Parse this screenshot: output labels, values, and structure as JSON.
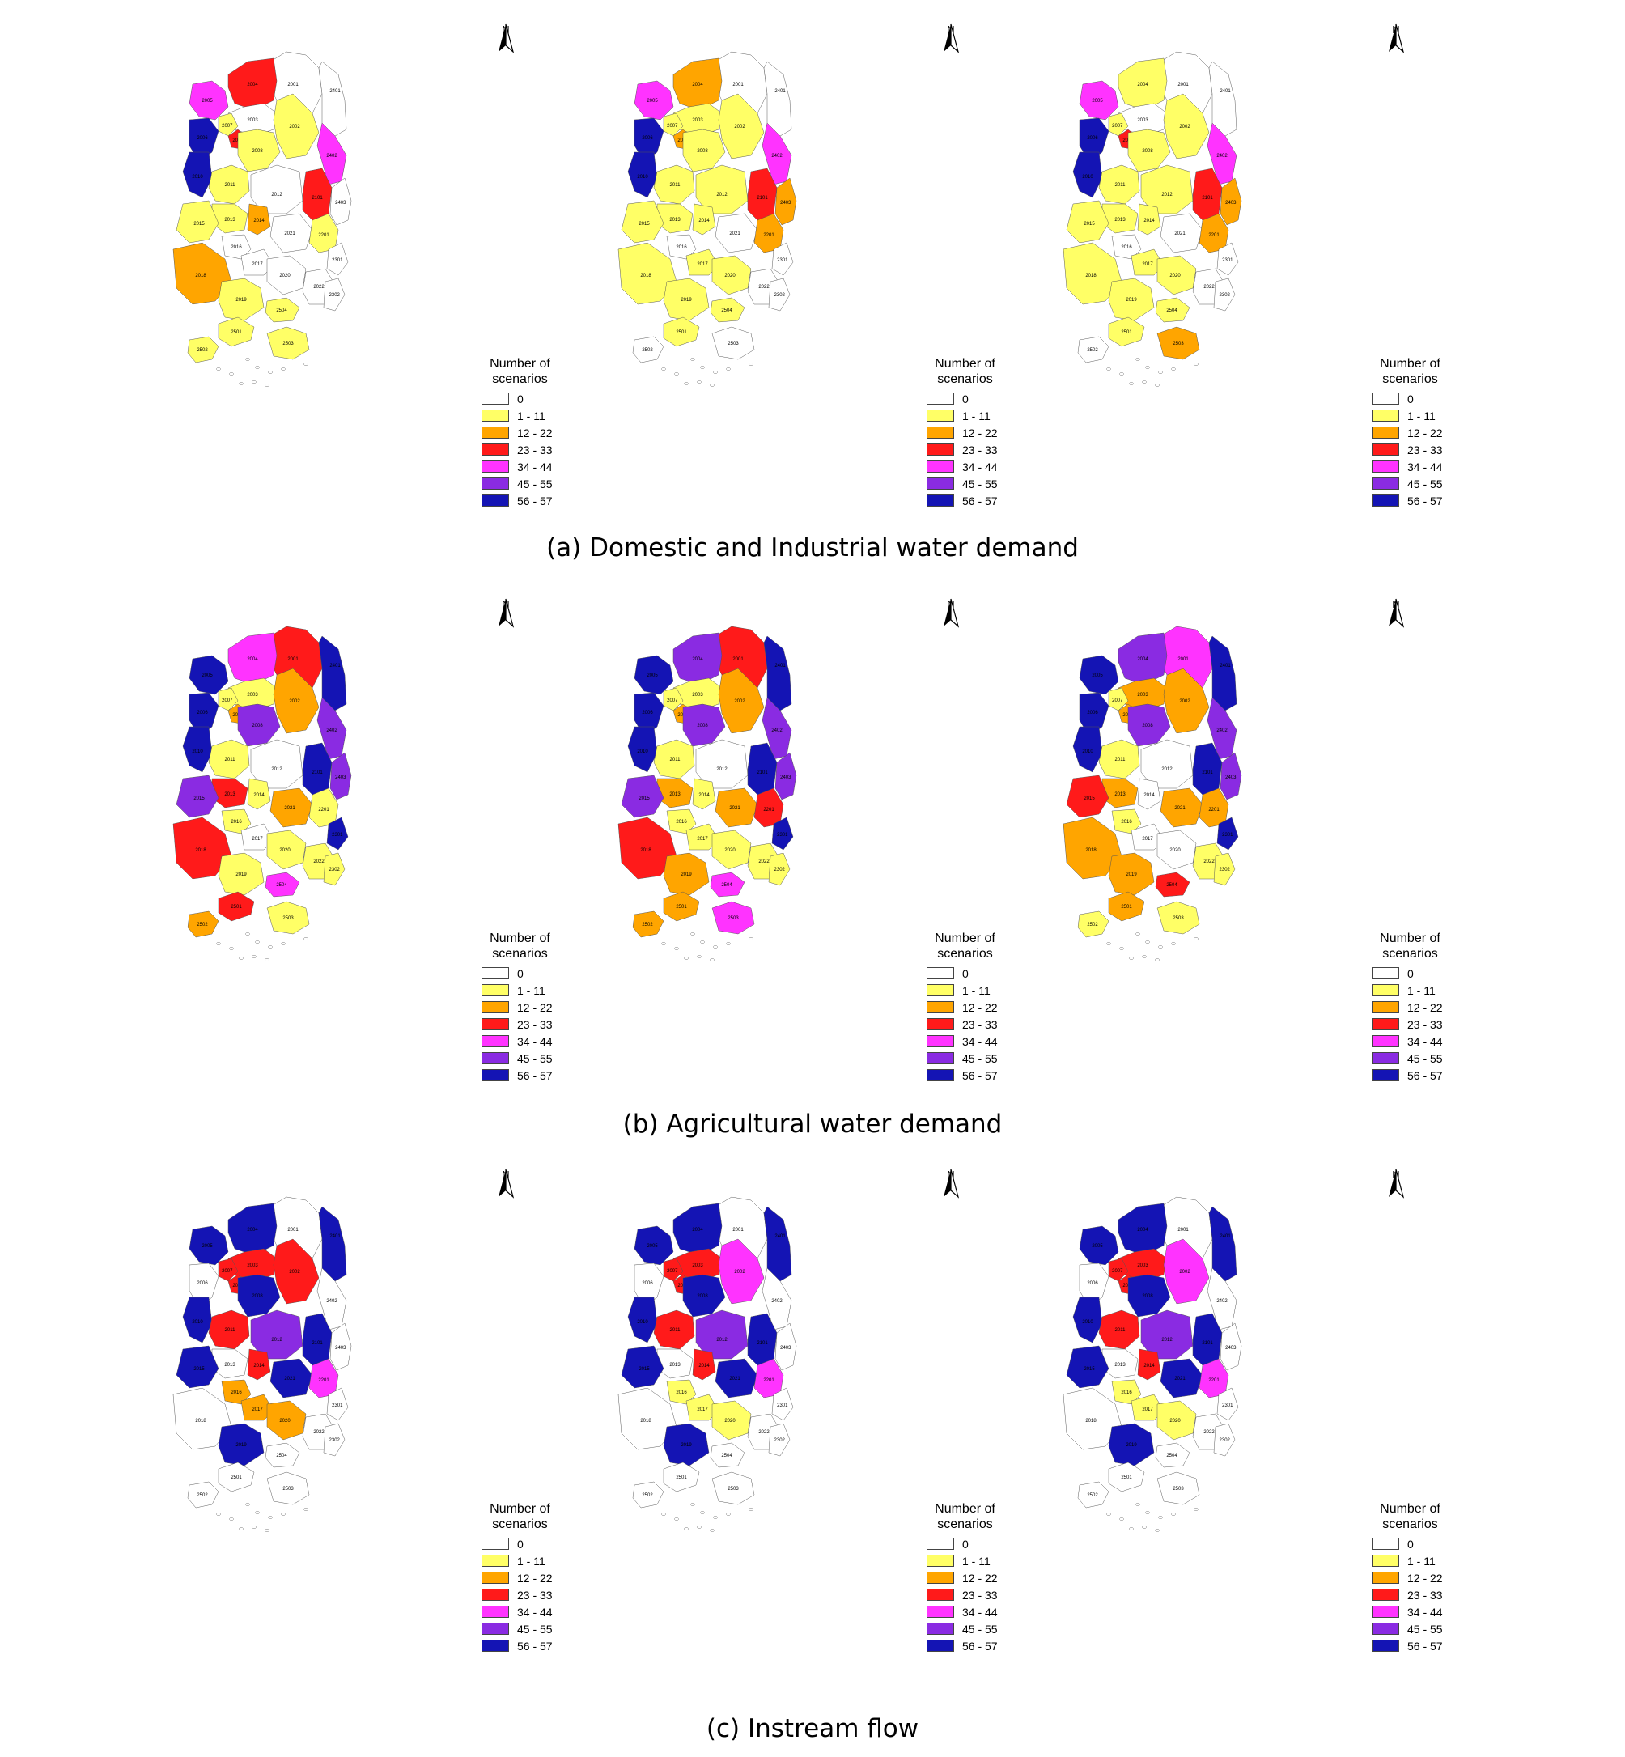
{
  "legend": {
    "title": "Number of scenarios",
    "classes": [
      {
        "label": "0",
        "color": "#ffffff"
      },
      {
        "label": "1 - 11",
        "color": "#ffff66"
      },
      {
        "label": "12 - 22",
        "color": "#ffa500"
      },
      {
        "label": "23 - 33",
        "color": "#ff1a1a"
      },
      {
        "label": "34 - 44",
        "color": "#ff33ff"
      },
      {
        "label": "45 - 55",
        "color": "#8a2be2"
      },
      {
        "label": "56 - 57",
        "color": "#1414b4"
      }
    ]
  },
  "north_label": "N",
  "rows": [
    {
      "caption": "(a) Domestic and Industrial water demand",
      "maps": [
        {
          "2001": 0,
          "2401": 0,
          "2004": 3,
          "2005": 4,
          "2003": 0,
          "2002": 1,
          "2007": 1,
          "2009": 3,
          "2006": 6,
          "2008": 1,
          "2402": 4,
          "2010": 6,
          "2011": 1,
          "2012": 0,
          "2101": 3,
          "2403": 0,
          "2013": 1,
          "2014": 2,
          "2015": 1,
          "2201": 1,
          "2021": 0,
          "2016": 0,
          "2017": 0,
          "2018": 2,
          "2301": 0,
          "2020": 0,
          "2022": 0,
          "2019": 1,
          "2302": 0,
          "2504": 1,
          "2501": 1,
          "2502": 1,
          "2503": 1
        },
        {
          "2001": 0,
          "2401": 0,
          "2004": 2,
          "2005": 4,
          "2003": 1,
          "2002": 1,
          "2007": 1,
          "2009": 2,
          "2006": 6,
          "2008": 1,
          "2402": 4,
          "2010": 6,
          "2011": 1,
          "2012": 1,
          "2101": 3,
          "2403": 2,
          "2013": 1,
          "2014": 1,
          "2015": 1,
          "2201": 2,
          "2021": 0,
          "2016": 0,
          "2017": 1,
          "2018": 1,
          "2301": 0,
          "2020": 1,
          "2022": 0,
          "2019": 1,
          "2302": 0,
          "2504": 1,
          "2501": 1,
          "2502": 0,
          "2503": 0
        },
        {
          "2001": 0,
          "2401": 0,
          "2004": 1,
          "2005": 4,
          "2003": 0,
          "2002": 1,
          "2007": 1,
          "2009": 3,
          "2006": 6,
          "2008": 1,
          "2402": 4,
          "2010": 6,
          "2011": 1,
          "2012": 1,
          "2101": 3,
          "2403": 2,
          "2013": 1,
          "2014": 1,
          "2015": 1,
          "2201": 2,
          "2021": 0,
          "2016": 0,
          "2017": 1,
          "2018": 1,
          "2301": 0,
          "2020": 1,
          "2022": 0,
          "2019": 1,
          "2302": 0,
          "2504": 1,
          "2501": 1,
          "2502": 0,
          "2503": 2
        }
      ]
    },
    {
      "caption": "(b) Agricultural water demand",
      "maps": [
        {
          "2001": 3,
          "2401": 6,
          "2004": 4,
          "2005": 6,
          "2003": 1,
          "2002": 2,
          "2007": 1,
          "2009": 2,
          "2006": 6,
          "2008": 5,
          "2402": 5,
          "2010": 6,
          "2011": 1,
          "2012": 0,
          "2101": 6,
          "2403": 5,
          "2013": 3,
          "2014": 1,
          "2015": 5,
          "2201": 1,
          "2021": 2,
          "2016": 1,
          "2017": 0,
          "2018": 3,
          "2301": 6,
          "2020": 1,
          "2022": 1,
          "2019": 1,
          "2302": 1,
          "2504": 4,
          "2501": 3,
          "2502": 2,
          "2503": 1
        },
        {
          "2001": 3,
          "2401": 6,
          "2004": 5,
          "2005": 6,
          "2003": 1,
          "2002": 2,
          "2007": 1,
          "2009": 2,
          "2006": 6,
          "2008": 5,
          "2402": 5,
          "2010": 6,
          "2011": 1,
          "2012": 0,
          "2101": 6,
          "2403": 5,
          "2013": 2,
          "2014": 1,
          "2015": 5,
          "2201": 3,
          "2021": 2,
          "2016": 1,
          "2017": 1,
          "2018": 3,
          "2301": 6,
          "2020": 1,
          "2022": 1,
          "2019": 2,
          "2302": 1,
          "2504": 4,
          "2501": 2,
          "2502": 2,
          "2503": 4
        },
        {
          "2001": 4,
          "2401": 6,
          "2004": 5,
          "2005": 6,
          "2003": 2,
          "2002": 2,
          "2007": 1,
          "2009": 2,
          "2006": 6,
          "2008": 5,
          "2402": 5,
          "2010": 6,
          "2011": 1,
          "2012": 0,
          "2101": 6,
          "2403": 5,
          "2013": 2,
          "2014": 0,
          "2015": 3,
          "2201": 2,
          "2021": 2,
          "2016": 1,
          "2017": 0,
          "2018": 2,
          "2301": 6,
          "2020": 0,
          "2022": 1,
          "2019": 2,
          "2302": 1,
          "2504": 3,
          "2501": 2,
          "2502": 1,
          "2503": 1
        }
      ]
    },
    {
      "caption": "(c) Instream flow",
      "maps": [
        {
          "2001": 0,
          "2401": 6,
          "2004": 6,
          "2005": 6,
          "2003": 3,
          "2002": 3,
          "2007": 3,
          "2009": 3,
          "2006": 0,
          "2008": 6,
          "2402": 0,
          "2010": 6,
          "2011": 3,
          "2012": 5,
          "2101": 6,
          "2403": 0,
          "2013": 0,
          "2014": 3,
          "2015": 6,
          "2201": 4,
          "2021": 6,
          "2016": 2,
          "2017": 2,
          "2018": 0,
          "2301": 0,
          "2020": 2,
          "2022": 0,
          "2019": 6,
          "2302": 0,
          "2504": 0,
          "2501": 0,
          "2502": 0,
          "2503": 0
        },
        {
          "2001": 0,
          "2401": 6,
          "2004": 6,
          "2005": 6,
          "2003": 3,
          "2002": 4,
          "2007": 3,
          "2009": 3,
          "2006": 0,
          "2008": 6,
          "2402": 0,
          "2010": 6,
          "2011": 3,
          "2012": 5,
          "2101": 6,
          "2403": 0,
          "2013": 0,
          "2014": 3,
          "2015": 6,
          "2201": 4,
          "2021": 6,
          "2016": 1,
          "2017": 1,
          "2018": 0,
          "2301": 0,
          "2020": 1,
          "2022": 0,
          "2019": 6,
          "2302": 0,
          "2504": 0,
          "2501": 0,
          "2502": 0,
          "2503": 0
        },
        {
          "2001": 0,
          "2401": 6,
          "2004": 6,
          "2005": 6,
          "2003": 3,
          "2002": 4,
          "2007": 3,
          "2009": 3,
          "2006": 0,
          "2008": 6,
          "2402": 0,
          "2010": 6,
          "2011": 3,
          "2012": 5,
          "2101": 6,
          "2403": 0,
          "2013": 0,
          "2014": 3,
          "2015": 6,
          "2201": 4,
          "2021": 6,
          "2016": 1,
          "2017": 1,
          "2018": 0,
          "2301": 0,
          "2020": 1,
          "2022": 0,
          "2019": 6,
          "2302": 0,
          "2504": 0,
          "2501": 0,
          "2502": 0,
          "2503": 0
        }
      ]
    }
  ]
}
